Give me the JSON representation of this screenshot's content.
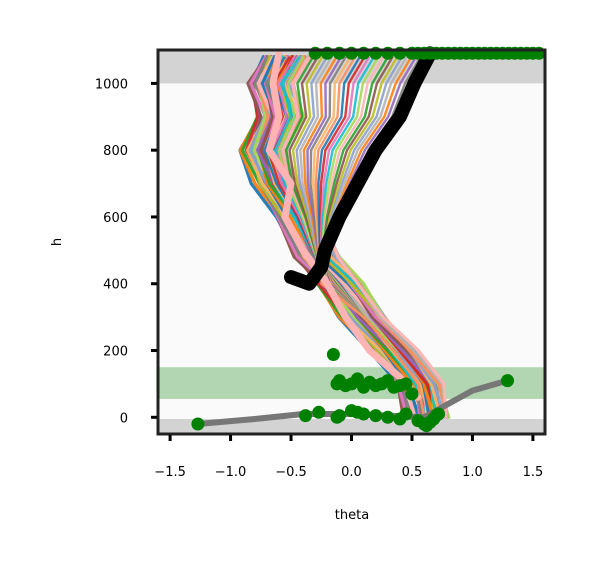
{
  "chart_data": {
    "type": "line",
    "xlabel": "theta",
    "ylabel": "h",
    "xlim": [
      -1.6,
      1.6
    ],
    "ylim": [
      -50,
      1100
    ],
    "xticks": [
      -1.5,
      -1.0,
      -0.5,
      0.0,
      0.5,
      1.0,
      1.5
    ],
    "xtick_labels": [
      "−1.5",
      "−1.0",
      "−0.5",
      "0.0",
      "0.5",
      "1.0",
      "1.5"
    ],
    "yticks": [
      0,
      200,
      400,
      600,
      800,
      1000
    ],
    "ytick_labels": [
      "0",
      "200",
      "400",
      "600",
      "800",
      "1000"
    ],
    "grid": false,
    "bands": [
      {
        "name": "upper-gray-band",
        "y0": 1000,
        "y1": 1100,
        "color": "#d3d3d3"
      },
      {
        "name": "lower-gray-band",
        "y0": -50,
        "y1": -5,
        "color": "#d3d3d3"
      },
      {
        "name": "green-band",
        "y0": 55,
        "y1": 150,
        "color": "#b2d6b2"
      }
    ],
    "colors": {
      "palette": [
        "#1f77b4",
        "#ff7f0e",
        "#2ca02c",
        "#d62728",
        "#9467bd",
        "#8c564b",
        "#e377c2",
        "#7f7f7f",
        "#bcbd22",
        "#17becf",
        "#fdb462",
        "#8da0cb",
        "#a6d854",
        "#fc8d62",
        "#b3b3b3",
        "#ffb3b3"
      ],
      "pink_series": "#ffb3b3",
      "gray_series": "#777777",
      "black_series": "#000000",
      "markers": "#008000",
      "plot_background": "#fafafa"
    },
    "bundle": {
      "description_key": "many overlapping colored profile lines",
      "x": [
        -0.55,
        -0.68,
        -0.6,
        -0.72,
        -0.62,
        -0.45,
        -0.3,
        -0.1,
        0.1,
        0.35,
        0.55,
        0.6
      ],
      "y": [
        1080,
        1000,
        900,
        800,
        700,
        600,
        480,
        400,
        300,
        200,
        100,
        0
      ]
    },
    "pink_line": {
      "x": [
        -0.6,
        -0.65,
        -0.6,
        -0.68,
        -0.5,
        -0.55,
        -0.4,
        -0.2,
        -0.05,
        0.15,
        0.4,
        0.55
      ],
      "y": [
        1090,
        1000,
        900,
        800,
        700,
        600,
        500,
        400,
        300,
        200,
        120,
        60
      ]
    },
    "black_line": {
      "x": [
        0.65,
        0.52,
        0.4,
        0.2,
        0.05,
        -0.1,
        -0.22,
        -0.25,
        -0.35,
        -0.5
      ],
      "y": [
        1090,
        1000,
        900,
        800,
        700,
        600,
        500,
        450,
        400,
        420
      ]
    },
    "gray_line": {
      "x": [
        -1.27,
        -0.8,
        -0.4,
        0.0,
        0.3,
        0.6,
        0.8,
        1.0,
        1.29
      ],
      "y": [
        -20,
        -5,
        10,
        10,
        5,
        0,
        40,
        80,
        110
      ]
    },
    "markers": {
      "x": [
        -1.27,
        -0.38,
        -0.27,
        -0.15,
        -0.12,
        -0.1,
        -0.05,
        0.0,
        0.05,
        0.1,
        0.15,
        0.2,
        0.25,
        0.3,
        0.35,
        0.4,
        0.45,
        0.5,
        0.55,
        0.6,
        0.62,
        0.65,
        0.68,
        0.7,
        0.72,
        -0.12,
        -0.1,
        0.0,
        0.05,
        0.1,
        0.2,
        0.3,
        0.4,
        0.45,
        -0.3,
        -0.2,
        -0.1,
        0.0,
        0.1,
        0.2,
        0.3,
        0.4,
        0.5,
        0.55,
        0.6,
        0.65,
        0.7,
        0.75,
        0.8,
        0.85,
        0.9,
        0.95,
        1.0,
        1.05,
        1.1,
        1.15,
        1.2,
        1.25,
        1.3,
        1.35,
        1.4,
        1.45,
        1.5,
        1.55,
        1.29
      ],
      "y": [
        -20,
        5,
        15,
        188,
        100,
        110,
        95,
        100,
        115,
        90,
        105,
        95,
        100,
        110,
        90,
        95,
        100,
        70,
        -10,
        -20,
        -25,
        -15,
        -5,
        5,
        10,
        0,
        5,
        20,
        15,
        10,
        5,
        0,
        -5,
        10,
        1090,
        1090,
        1090,
        1090,
        1090,
        1090,
        1090,
        1090,
        1090,
        1090,
        1090,
        1090,
        1090,
        1090,
        1090,
        1090,
        1090,
        1090,
        1090,
        1090,
        1090,
        1090,
        1090,
        1090,
        1090,
        1090,
        1090,
        1090,
        1090,
        1090,
        110
      ]
    }
  }
}
